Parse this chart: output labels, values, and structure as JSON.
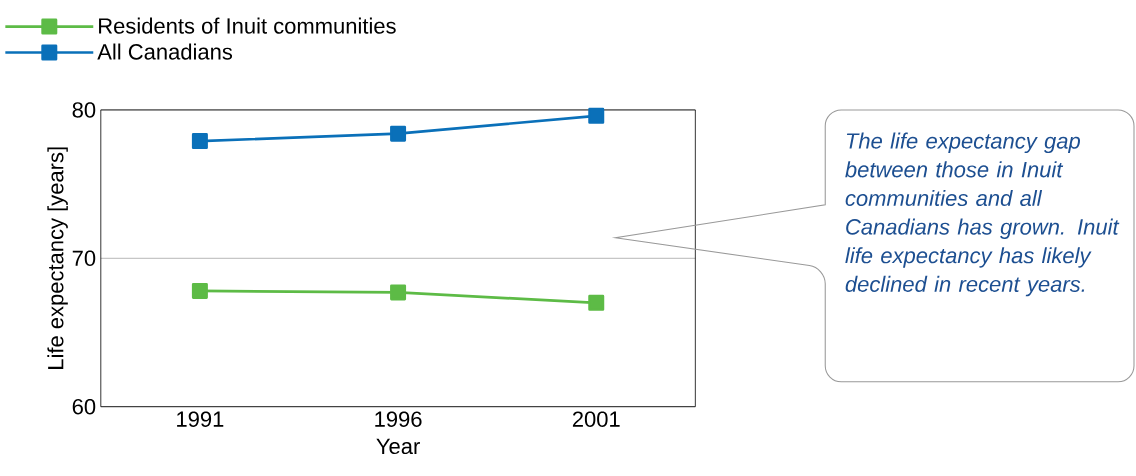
{
  "chart_data": {
    "type": "line",
    "categories": [
      "1991",
      "1996",
      "2001"
    ],
    "series": [
      {
        "name": "Residents of Inuit communities",
        "color": "#5dbb46",
        "values": [
          67.8,
          67.7,
          67.0
        ]
      },
      {
        "name": "All Canadians",
        "color": "#0a70b9",
        "values": [
          77.9,
          78.4,
          79.6
        ]
      }
    ],
    "xlabel": "Year",
    "ylabel": "Life expectancy [years]",
    "ylim": [
      60,
      80
    ],
    "yticks": [
      60,
      70,
      80
    ],
    "grid": "y",
    "legend": "top left",
    "marker": "square",
    "line_style": "solid",
    "annotations": [
      "The life expectancy gap between those in Inuit communities and all Canadians has grown. Inuit life expectancy has likely declined in recent years."
    ]
  }
}
